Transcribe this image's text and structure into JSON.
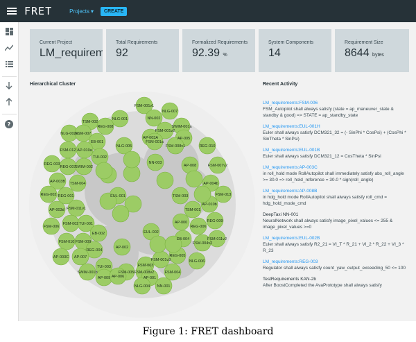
{
  "topbar": {
    "logo": "FRET",
    "projects_label": "Projects",
    "create_label": "CREATE"
  },
  "sidebar": {
    "icons": [
      "dashboard-icon",
      "analytics-icon",
      "list-icon",
      "import-icon",
      "export-icon",
      "help-icon"
    ]
  },
  "summary_cards": [
    {
      "label": "Current Project",
      "value": "LM_requirem",
      "unit": ""
    },
    {
      "label": "Total Requirements",
      "value": "92",
      "unit": ""
    },
    {
      "label": "Formalized Requirements",
      "value": "92.39",
      "unit": "%"
    },
    {
      "label": "System Components",
      "value": "14",
      "unit": ""
    },
    {
      "label": "Requirement Size",
      "value": "8644",
      "unit": "bytes"
    }
  ],
  "cluster": {
    "title": "Hierarchical Cluster",
    "nodes": [
      "FSM-001v1",
      "NLG-007",
      "NN-002",
      "NLG-001",
      "TSM-002",
      "REG-008",
      "SWIM-001a",
      "FSM-001v2",
      "NLG-002a",
      "FSM-007",
      "AP-003A",
      "AP-005",
      "FSM-001a",
      "EB-001",
      "NLG-005",
      "FSM-008v1",
      "REG-010",
      "FSM-012",
      "AP-010a",
      "TUI-002",
      "NN-003",
      "AP-008",
      "FSM-007v2",
      "REG-003",
      "REG-007",
      "SWIM-002",
      "AP-003B",
      "TSM-004",
      "AP-004b",
      "TSM-003",
      "FSM-013",
      "REG-002",
      "REG-001",
      "EUL-001",
      "AP-010b",
      "FSM-011v1",
      "AP-003d",
      "TSM-001",
      "REG-009",
      "FSM-006",
      "FSM-002",
      "TUI-001",
      "AP-000",
      "REG-006",
      "EB-002",
      "EUL-002",
      "FSM-011v2",
      "FSM-010",
      "FSM-009",
      "EB-004",
      "FSM-004v2",
      "REG-004",
      "AP-002",
      "AP-003C",
      "AP-007",
      "REG-005",
      "NLG-006",
      "TUI-003",
      "FSM-001v3",
      "FSM-003",
      "FSM-008v2",
      "FSM-005",
      "AP-009",
      "SWIM-001b",
      "AP-006",
      "AP-001",
      "FSM-004",
      "NLG-004",
      "NN-001"
    ]
  },
  "activity": {
    "title": "Recent Activity",
    "items": [
      {
        "head": "LM_requirements:FSM-006",
        "body": "FSM_Autopilot shall always satisfy (state = ap_maneuver_state & standby & good) => STATE = ap_standby_state",
        "link": true
      },
      {
        "head": "LM_requirements:EUL-001H",
        "body": "Euler shall always satisfy DCM321_32 = (- SinPhi * CosPsi) + (CosPhi * SinTheta * SinPsi)",
        "link": true
      },
      {
        "head": "LM_requirements:EUL-001B",
        "body": "Euler shall always satisfy DCM321_12 = CosTheta * SinPsi",
        "link": true
      },
      {
        "head": "LM_requirements:AP-003C",
        "body": "in roll_hold mode RollAutopilot shall immediately satisfy abs_roll_angle >= 30.0 => roll_hold_reference = 30.0 * sign(roll_angle)",
        "link": true
      },
      {
        "head": "LM_requirements:AP-008B",
        "body": "in hdg_hold mode RollAutopilot shall always satisfy roll_cmd = hdg_hold_mode_cmd",
        "link": true
      },
      {
        "head": "DeepTaxi NN-001",
        "body": "NeuralNetwork shall always satisfy image_pixel_values <= 255 & image_pixel_values >=0",
        "link": false
      },
      {
        "head": "LM_requirements:EUL-002B",
        "body": "Euler shall always satisfy R2_21 = VI_T * R_21 + VI_2 * R_22 + VI_3 * R_23",
        "link": true
      },
      {
        "head": "LM_requirements:REG-003",
        "body": "Regulator shall always satisfy count_yaw_output_exceeding_50 <= 100",
        "link": true
      },
      {
        "head": "TestRequirements KAN-2b",
        "body": "After BoostCompleted the AvaPrototype shall always satisfy",
        "link": false
      }
    ]
  },
  "caption": "Figure 1: FRET dashboard",
  "colors": {
    "topbar": "#263238",
    "accent": "#29b6f6",
    "card": "#cfd8dc",
    "leaf": "#9ccc65",
    "leaf_stroke": "#7cb342",
    "cluster_outer": "#eeeeee",
    "cluster_mid": "#dcdcdc",
    "cluster_inner": "#c8c8c8",
    "link": "#2196f3"
  }
}
